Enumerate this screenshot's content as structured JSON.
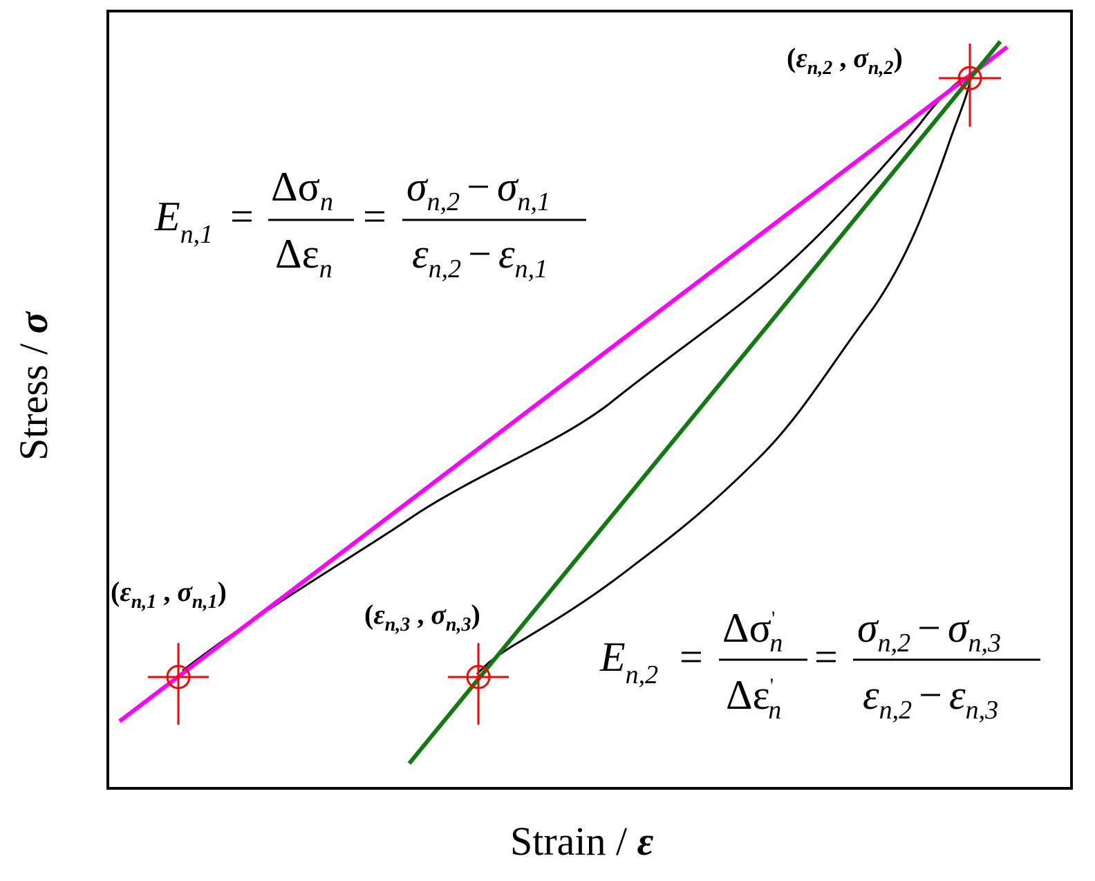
{
  "axes": {
    "x_label": {
      "text": "Strain / ",
      "symbol": "ε"
    },
    "y_label": {
      "text": "Stress / ",
      "symbol": "σ"
    }
  },
  "points": [
    {
      "id": "n1",
      "eps": "ε",
      "sig": "σ",
      "sub": "n,1",
      "sep": " , "
    },
    {
      "id": "n2",
      "eps": "ε",
      "sig": "σ",
      "sub": "n,2",
      "sep": " , "
    },
    {
      "id": "n3",
      "eps": "ε",
      "sig": "σ",
      "sub": "n,3",
      "sep": " , "
    }
  ],
  "formula1": {
    "lhs": "E",
    "lhs_sub": "n,1",
    "eq": "=",
    "num1": "Δσ",
    "num1_sub": "n",
    "den1": "Δε",
    "den1_sub": "n",
    "num2_a": "σ",
    "num2_a_sub": "n,2",
    "minus": "−",
    "num2_b": "σ",
    "num2_b_sub": "n,1",
    "den2_a": "ε",
    "den2_a_sub": "n,2",
    "den2_b": "ε",
    "den2_b_sub": "n,1"
  },
  "formula2": {
    "lhs": "E",
    "lhs_sub": "n,2",
    "eq": "=",
    "num1": "Δσ",
    "num1_sub": "n",
    "prime": "'",
    "den1": "Δε",
    "den1_sub": "n",
    "num2_a": "σ",
    "num2_a_sub": "n,2",
    "minus": "−",
    "num2_b": "σ",
    "num2_b_sub": "n,3",
    "den2_a": "ε",
    "den2_a_sub": "n,2",
    "den2_b": "ε",
    "den2_b_sub": "n,3"
  },
  "colors": {
    "frame": "#000000",
    "curve": "#000000",
    "secant_1": "#ff00ff",
    "secant_2": "#117a11",
    "marker": "#ff0000"
  }
}
